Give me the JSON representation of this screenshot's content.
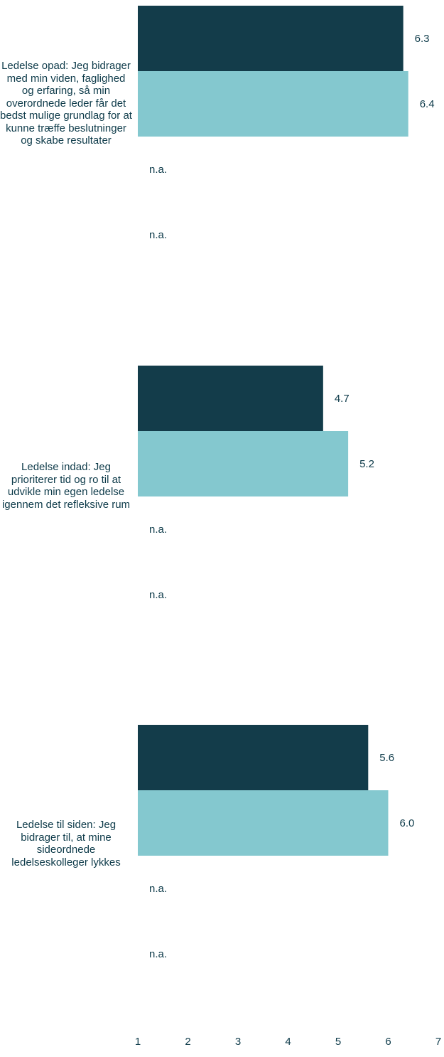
{
  "chart_data": {
    "type": "bar",
    "orientation": "horizontal",
    "categories": [
      "Ledelse opad: Jeg bidrager med min viden, faglighed og erfaring, så min overordnede leder får det bedst mulige grundlag for at kunne træffe beslutninger og skabe resultater",
      "Ledelse indad: Jeg prioriterer tid og ro til at udvikle min egen ledelse igennem det refleksive rum",
      "Ledelse til siden: Jeg bidrager til, at mine sideordnede ledelseskolleger lykkes"
    ],
    "series": [
      {
        "values": [
          6.3,
          4.7,
          5.6
        ],
        "labels": [
          "6.3",
          "4.7",
          "5.6"
        ],
        "color": "#133c4a"
      },
      {
        "values": [
          6.4,
          5.2,
          6.0
        ],
        "labels": [
          "6.4",
          "5.2",
          "6.0"
        ],
        "color": "#84c8cf"
      },
      {
        "values": [
          null,
          null,
          null
        ],
        "labels": [
          "n.a.",
          "n.a.",
          "n.a."
        ],
        "color": "#84c8cf"
      },
      {
        "values": [
          null,
          null,
          null
        ],
        "labels": [
          "n.a.",
          "n.a.",
          "n.a."
        ],
        "color": "#84c8cf"
      }
    ],
    "xlim": [
      1,
      7
    ],
    "xticks": [
      "1",
      "2",
      "3",
      "4",
      "5",
      "6",
      "7"
    ],
    "title": "",
    "xlabel": "",
    "ylabel": "",
    "grid": false,
    "legend": "none"
  }
}
